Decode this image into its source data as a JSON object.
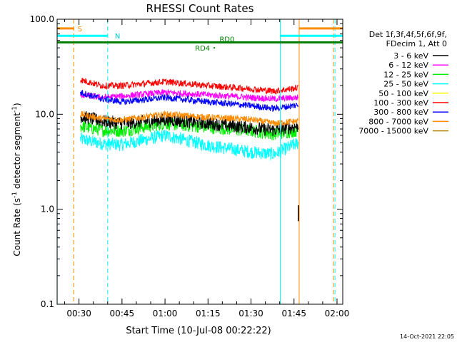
{
  "chart_data": {
    "type": "line",
    "title": "RHESSI Count Rates",
    "xlabel": "Start Time (10-Jul-08 00:22:22)",
    "ylabel_main": "Count Rate (s",
    "ylabel_sup1": "-1",
    "ylabel_mid": " detector segment",
    "ylabel_sup2": "-1",
    "ylabel_end": ")",
    "yscale": "log",
    "ylim": [
      0.1,
      100.0
    ],
    "xlim_minutes": [
      22.37,
      122.0
    ],
    "y_ticks": [
      {
        "value": 0.1,
        "label": "0.1"
      },
      {
        "value": 1.0,
        "label": "1.0"
      },
      {
        "value": 10.0,
        "label": "10.0"
      },
      {
        "value": 100.0,
        "label": "100.0"
      }
    ],
    "x_ticks": [
      {
        "value": 30,
        "label": "00:30"
      },
      {
        "value": 45,
        "label": "00:45"
      },
      {
        "value": 60,
        "label": "01:00"
      },
      {
        "value": 75,
        "label": "01:15"
      },
      {
        "value": 90,
        "label": "01:30"
      },
      {
        "value": 105,
        "label": "01:45"
      },
      {
        "value": 120,
        "label": "02:00"
      }
    ],
    "legend_header": [
      "Det 1f,3f,4f,5f,6f,9f,",
      "FDecim 1, Att 0"
    ],
    "series": [
      {
        "name": "3 - 6 keV",
        "color": "#000000",
        "values": [
          9.5,
          8.5,
          8.0,
          8.8,
          8.0,
          7.2,
          6.8,
          7.5
        ]
      },
      {
        "name": "6 - 12 keV",
        "color": "#ff00ff",
        "values": [
          16,
          15,
          15.5,
          17,
          16,
          15,
          14.5,
          15
        ]
      },
      {
        "name": "12 - 25 keV",
        "color": "#00ee00",
        "values": [
          7.5,
          6.8,
          6.7,
          8.0,
          7.3,
          6.7,
          6.2,
          6.8
        ]
      },
      {
        "name": "25 - 50 keV",
        "color": "#00ffff",
        "values": [
          5.5,
          4.9,
          4.8,
          6.0,
          4.7,
          4.0,
          3.8,
          5.0
        ]
      },
      {
        "name": "50 - 100 keV",
        "color": "#ffff00",
        "values": []
      },
      {
        "name": "100 - 300 keV",
        "color": "#ff0000",
        "values": [
          23,
          20,
          20,
          22,
          20,
          18.5,
          17.5,
          19
        ]
      },
      {
        "name": "300 - 800 keV",
        "color": "#0000ff",
        "values": [
          17,
          14.5,
          13.5,
          15,
          13.5,
          12.3,
          11.5,
          12.5
        ]
      },
      {
        "name": "800 - 7000 keV",
        "color": "#ff8c00",
        "values": [
          10,
          9.0,
          8.7,
          10.0,
          9.3,
          8.8,
          8.0,
          8.5
        ]
      },
      {
        "name": "7000 - 15000 keV",
        "color": "#b8860b",
        "values": []
      }
    ],
    "series_x_minutes": [
      30.5,
      38,
      45,
      60,
      75,
      90,
      98,
      106.5
    ],
    "spike_minutes": 106.5,
    "spike_value": 1.1,
    "bars": [
      {
        "label": "S",
        "color": "#ff8c00",
        "value": 80,
        "ranges": [
          [
            22.37,
            28.2
          ],
          [
            106.8,
            122
          ]
        ]
      },
      {
        "label": "N",
        "color": "#00ffff",
        "value": 67,
        "ranges": [
          [
            22.37,
            40.0
          ],
          [
            100.2,
            122
          ]
        ]
      },
      {
        "label": "RD0",
        "color": "#008000",
        "value": 57,
        "ranges": [
          [
            22.37,
            122
          ]
        ]
      }
    ],
    "rd4_label": "RD4",
    "rd4_point": {
      "x": 77.2,
      "y": 50
    },
    "vlines": [
      {
        "x": 22.4,
        "color": "#00ffff",
        "style": "solid"
      },
      {
        "x": 28.2,
        "color": "#ff8c00",
        "style": "dash"
      },
      {
        "x": 40.0,
        "color": "#00ffff",
        "style": "dash"
      },
      {
        "x": 100.2,
        "color": "#00ffff",
        "style": "solid"
      },
      {
        "x": 106.8,
        "color": "#ff8c00",
        "style": "solid"
      },
      {
        "x": 118.8,
        "color": "#ff8c00",
        "style": "dash"
      },
      {
        "x": 119.3,
        "color": "#00ffff",
        "style": "dash"
      }
    ],
    "timestamp": "14-Oct-2021 22:05"
  }
}
